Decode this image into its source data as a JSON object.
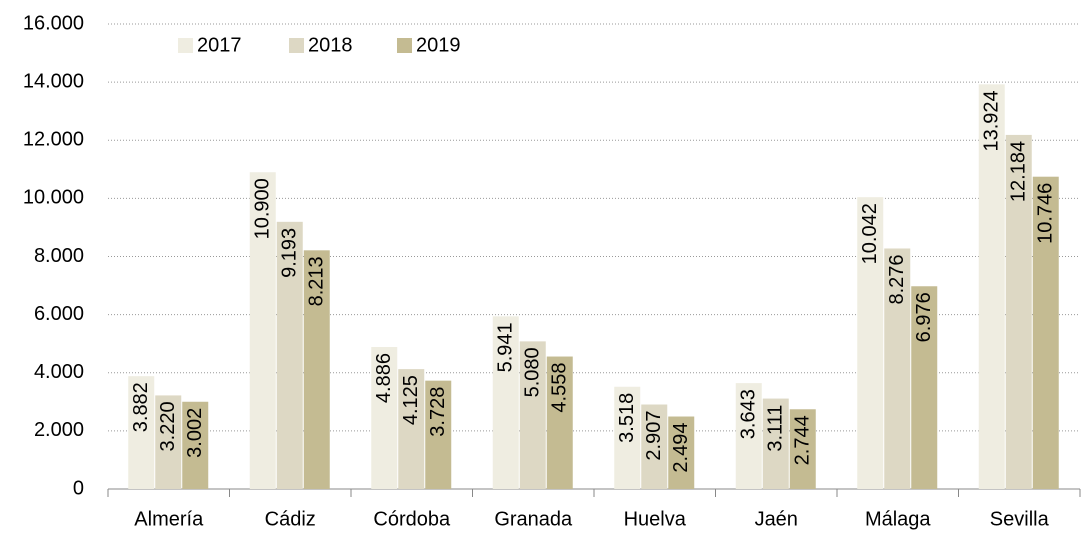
{
  "chart_data": {
    "type": "bar",
    "categories": [
      "Almería",
      "Cádiz",
      "Córdoba",
      "Granada",
      "Huelva",
      "Jaén",
      "Málaga",
      "Sevilla"
    ],
    "series": [
      {
        "name": "2017",
        "color": "#efede1",
        "values": [
          3882,
          10900,
          4886,
          5941,
          3518,
          3643,
          10042,
          13924
        ],
        "value_labels": [
          "3.882",
          "10.900",
          "4.886",
          "5.941",
          "3.518",
          "3.643",
          "10.042",
          "13.924"
        ]
      },
      {
        "name": "2018",
        "color": "#ddd8c4",
        "values": [
          3220,
          9193,
          4125,
          5080,
          2907,
          3111,
          8276,
          12184
        ],
        "value_labels": [
          "3.220",
          "9.193",
          "4.125",
          "5.080",
          "2.907",
          "3.111",
          "8.276",
          "12.184"
        ]
      },
      {
        "name": "2019",
        "color": "#c4bb92",
        "values": [
          3002,
          8213,
          3728,
          4558,
          2494,
          2744,
          6976,
          10746
        ],
        "value_labels": [
          "3.002",
          "8.213",
          "3.728",
          "4.558",
          "2.494",
          "2.744",
          "6.976",
          "10.746"
        ]
      }
    ],
    "ylim": [
      0,
      16000
    ],
    "yticks": [
      0,
      {
        "value": 2000,
        "label": "2.000"
      },
      {
        "value": 4000,
        "label": "4.000"
      },
      {
        "value": 6000,
        "label": "6.000"
      },
      {
        "value": 8000,
        "label": "8.000"
      },
      {
        "value": 10000,
        "label": "10.000"
      },
      {
        "value": 12000,
        "label": "12.000"
      },
      {
        "value": 14000,
        "label": "14.000"
      },
      {
        "value": 16000,
        "label": "16.000"
      }
    ],
    "grid": true,
    "legend": "top-left"
  }
}
